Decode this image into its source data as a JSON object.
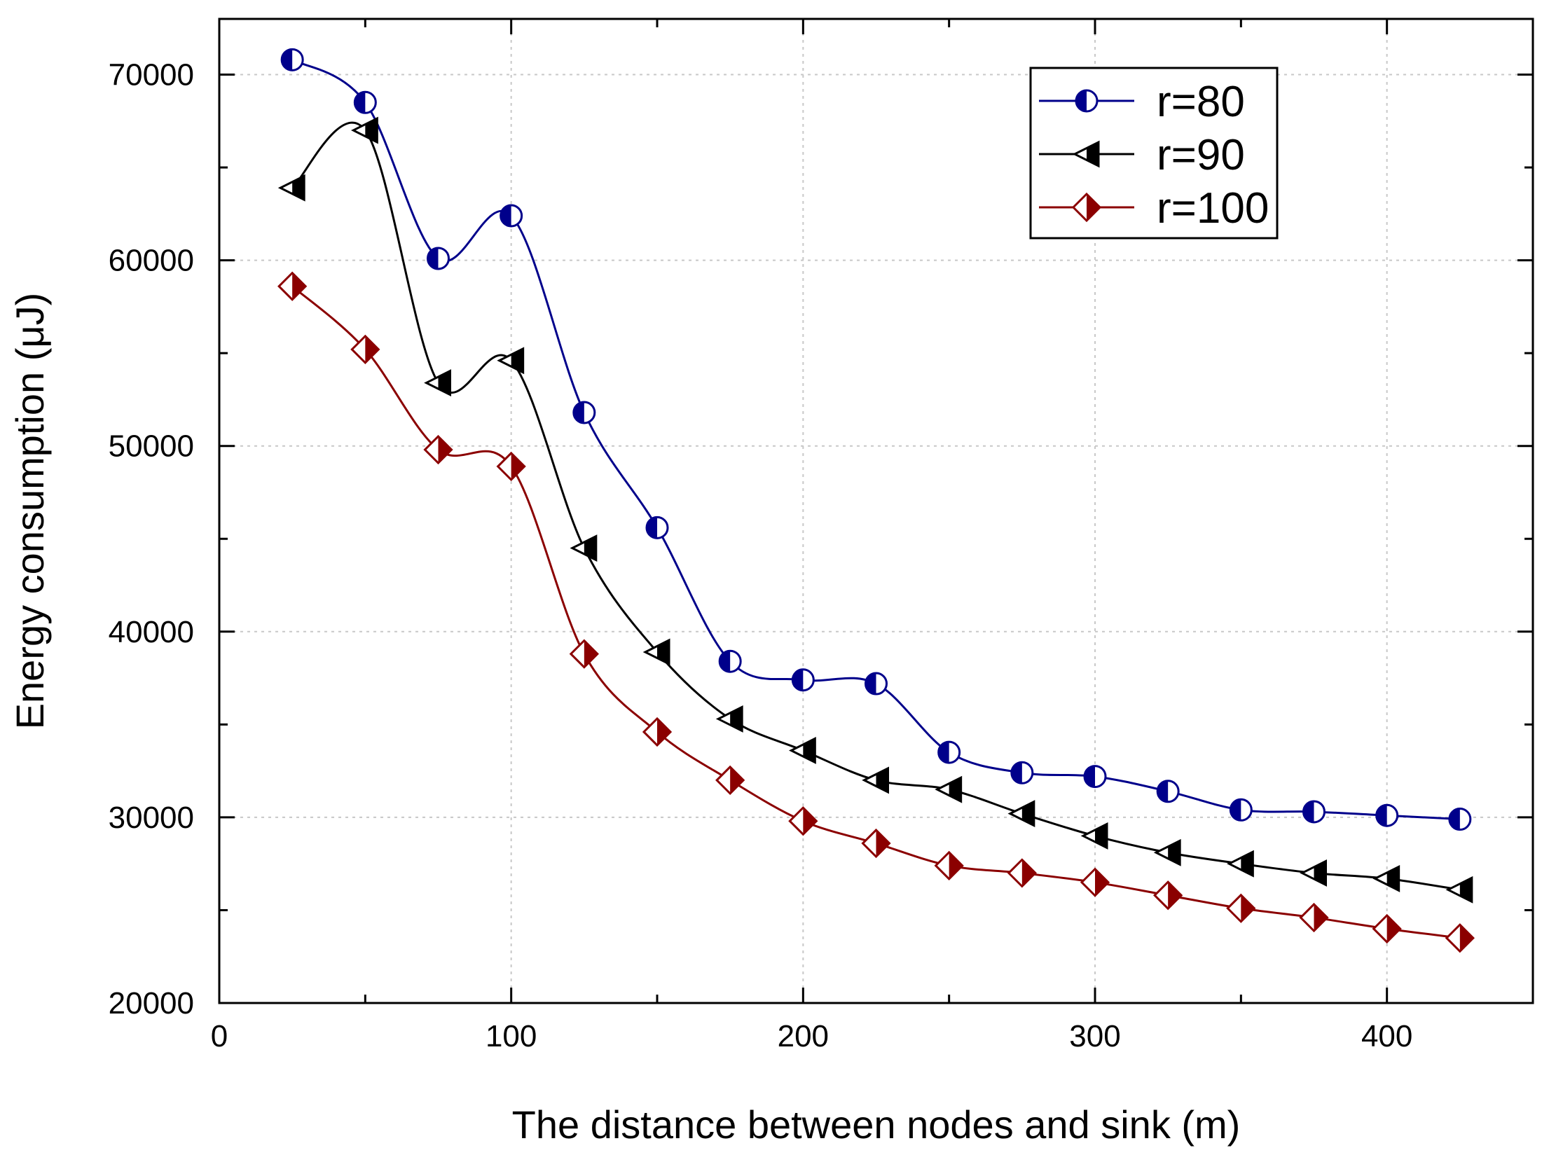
{
  "chart_data": {
    "type": "line",
    "title": "",
    "xlabel": "The distance between nodes and sink (m)",
    "ylabel": "Energy consumption (μJ)",
    "xlim": [
      0,
      450
    ],
    "ylim": [
      20000,
      73000
    ],
    "xticks": [
      0,
      100,
      200,
      300,
      400
    ],
    "yticks": [
      20000,
      30000,
      40000,
      50000,
      60000,
      70000
    ],
    "grid": true,
    "legend_position": "top-right",
    "x": [
      25,
      50,
      75,
      100,
      125,
      150,
      175,
      200,
      225,
      250,
      275,
      300,
      325,
      350,
      375,
      400,
      425
    ],
    "series": [
      {
        "name": "r=80",
        "color": "#00008b",
        "marker": "half-filled-circle",
        "values": [
          70800,
          68500,
          60100,
          62400,
          51800,
          45600,
          38400,
          37400,
          37200,
          33500,
          32400,
          32200,
          31400,
          30400,
          30300,
          30100,
          29900
        ]
      },
      {
        "name": "r=90",
        "color": "#000000",
        "marker": "half-filled-left-triangle",
        "values": [
          63900,
          67000,
          53400,
          54600,
          44500,
          38900,
          35300,
          33600,
          32000,
          31500,
          30200,
          29000,
          28100,
          27500,
          27000,
          26700,
          26100
        ]
      },
      {
        "name": "r=100",
        "color": "#8b0000",
        "marker": "half-filled-diamond",
        "values": [
          58600,
          55200,
          49800,
          48900,
          38800,
          34600,
          32000,
          29800,
          28600,
          27400,
          27000,
          26500,
          25800,
          25100,
          24600,
          24000,
          23500
        ]
      }
    ]
  }
}
